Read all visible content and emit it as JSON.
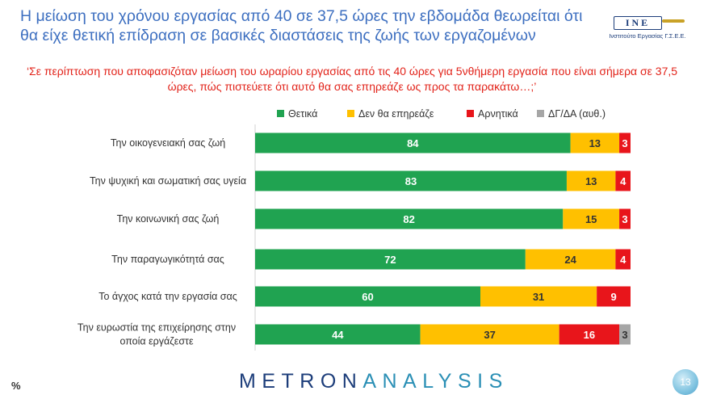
{
  "header": {
    "title": "Η μείωση του χρόνου εργασίας από 40 σε 37,5 ώρες την εβδομάδα θεωρείται ότι θα είχε θετική επίδραση σε βασικές διαστάσεις της ζωής των εργαζομένων",
    "logo_mark": "ΙΝΕ",
    "logo_text": "Ινστιτούτο Εργασίας Γ.Σ.Ε.Ε."
  },
  "question": "‘Σε περίπτωση που αποφασιζόταν μείωση του ωραρίου εργασίας από τις 40 ώρες για 5νθήμερη εργασία που είναι σήμερα σε 37,5 ώρες, πώς πιστεύετε ότι αυτό θα σας επηρεάζε ως προς τα παρακάτω…;’",
  "chart_data": {
    "type": "bar",
    "orientation": "horizontal",
    "stacked": true,
    "categories": [
      "Την οικογενειακή σας ζωή",
      "Την ψυχική και σωματική σας υγεία",
      "Την κοινωνική σας ζωή",
      "Την παραγωγικότητά σας",
      "Το άγχος κατά την εργασία σας",
      "Την ευρωστία της επιχείρησης στην οποία εργάζεστε"
    ],
    "series": [
      {
        "name": "Θετικά",
        "color": "#20a351",
        "values": [
          84,
          83,
          82,
          72,
          60,
          44
        ]
      },
      {
        "name": "Δεν θα επηρεάζε",
        "color": "#ffc000",
        "values": [
          13,
          13,
          15,
          24,
          31,
          37
        ]
      },
      {
        "name": "Αρνητικά",
        "color": "#e8151b",
        "values": [
          3,
          4,
          3,
          4,
          9,
          16
        ]
      },
      {
        "name": "ΔΓ/ΔΑ (αυθ.)",
        "color": "#a6a6a6",
        "values": [
          0,
          0,
          0,
          0,
          0,
          3
        ]
      }
    ],
    "xlim": [
      0,
      100
    ],
    "legend_position": "top",
    "grid": false,
    "unit": "%"
  },
  "footer": {
    "unit_label": "%",
    "brand_part1": "METRON",
    "brand_part2": "ANALYSIS",
    "page_number": "13"
  }
}
